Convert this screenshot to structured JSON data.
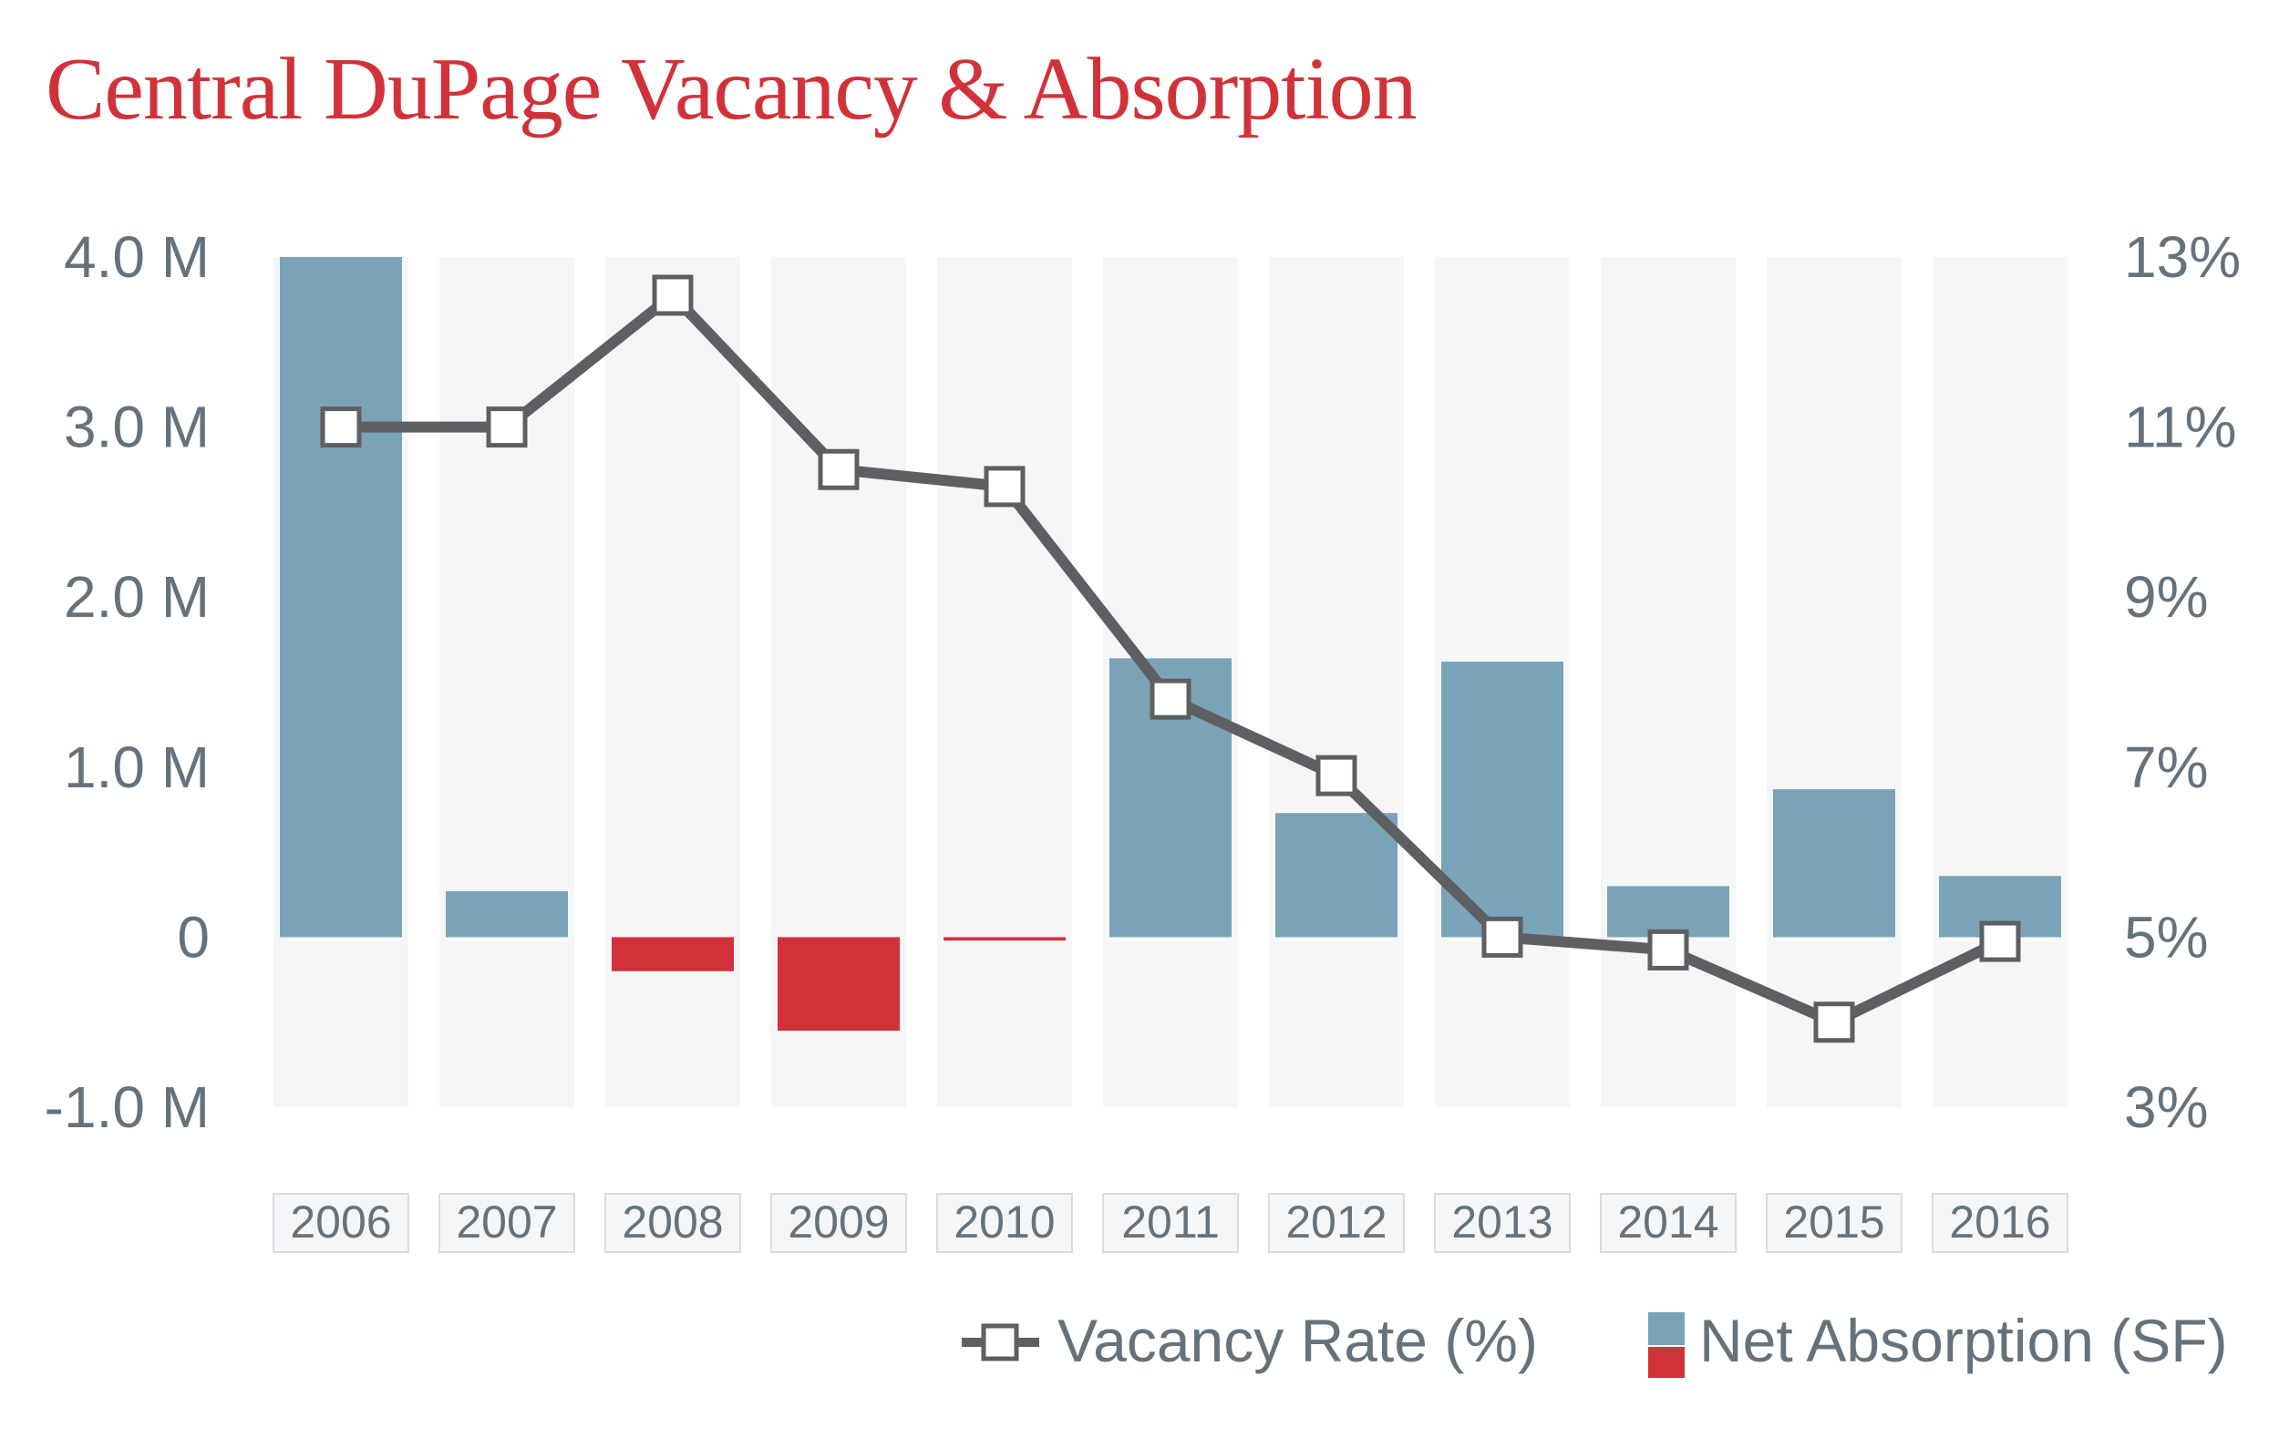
{
  "chart_data": {
    "type": "bar+line",
    "title": "Central DuPage Vacancy & Absorption",
    "categories": [
      "2006",
      "2007",
      "2008",
      "2009",
      "2010",
      "2011",
      "2012",
      "2013",
      "2014",
      "2015",
      "2016"
    ],
    "series": [
      {
        "name": "Net Absorption (SF)",
        "type": "bar",
        "axis": "left",
        "values": [
          4000000,
          270000,
          -200000,
          -550000,
          -20000,
          1640000,
          730000,
          1620000,
          300000,
          870000,
          360000
        ]
      },
      {
        "name": "Vacancy Rate (%)",
        "type": "line",
        "axis": "right",
        "values": [
          11.0,
          11.0,
          12.55,
          10.5,
          10.3,
          7.8,
          6.9,
          5.0,
          4.85,
          4.0,
          4.95
        ]
      }
    ],
    "y_left": {
      "min": -1000000,
      "max": 4000000,
      "ticks": [
        4000000,
        3000000,
        2000000,
        1000000,
        0,
        -1000000
      ],
      "tick_labels": [
        "4.0 M",
        "3.0 M",
        "2.0 M",
        "1.0 M",
        "0",
        "-1.0 M"
      ]
    },
    "y_right": {
      "min": 3,
      "max": 13,
      "ticks": [
        13,
        11,
        9,
        7,
        5,
        3
      ],
      "tick_labels": [
        "13%",
        "11%",
        "9%",
        "7%",
        "5%",
        "3%"
      ]
    },
    "legend": {
      "placement": "bottom-right",
      "items": [
        "Vacancy Rate (%)",
        "Net Absorption (SF)"
      ]
    },
    "colors": {
      "positive_bar": "#7aa3b8",
      "negative_bar": "#d13239",
      "line": "#5e5f62",
      "band": "#f5f6f8",
      "title": "#d13239",
      "text": "#66727b"
    }
  }
}
